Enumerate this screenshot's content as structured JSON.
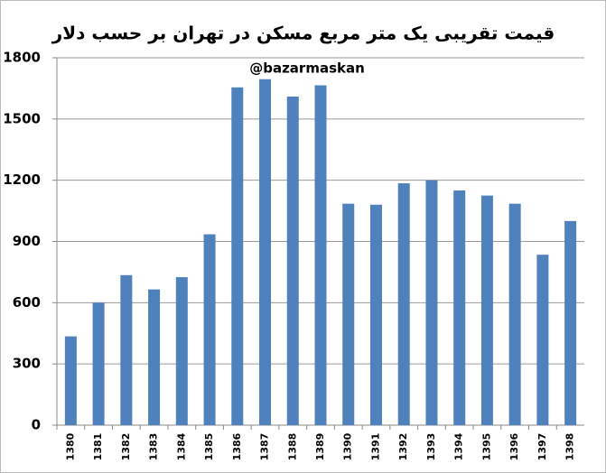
{
  "chart_data": {
    "type": "bar",
    "title": "قیمت تقریبی یک متر مربع مسکن در تهران بر حسب دلار",
    "annotation": "@bazarmaskan",
    "categories": [
      "1380",
      "1381",
      "1382",
      "1383",
      "1384",
      "1385",
      "1386",
      "1387",
      "1388",
      "1389",
      "1390",
      "1391",
      "1392",
      "1393",
      "1394",
      "1395",
      "1396",
      "1397",
      "1398"
    ],
    "values": [
      435,
      600,
      735,
      665,
      725,
      935,
      1655,
      1695,
      1610,
      1665,
      1085,
      1080,
      1185,
      1200,
      1150,
      1125,
      1085,
      835,
      1000
    ],
    "color": "#4f81bd",
    "ylim": [
      0,
      1800
    ],
    "yticks": [
      0,
      300,
      600,
      900,
      1200,
      1500,
      1800
    ],
    "grid": true
  }
}
